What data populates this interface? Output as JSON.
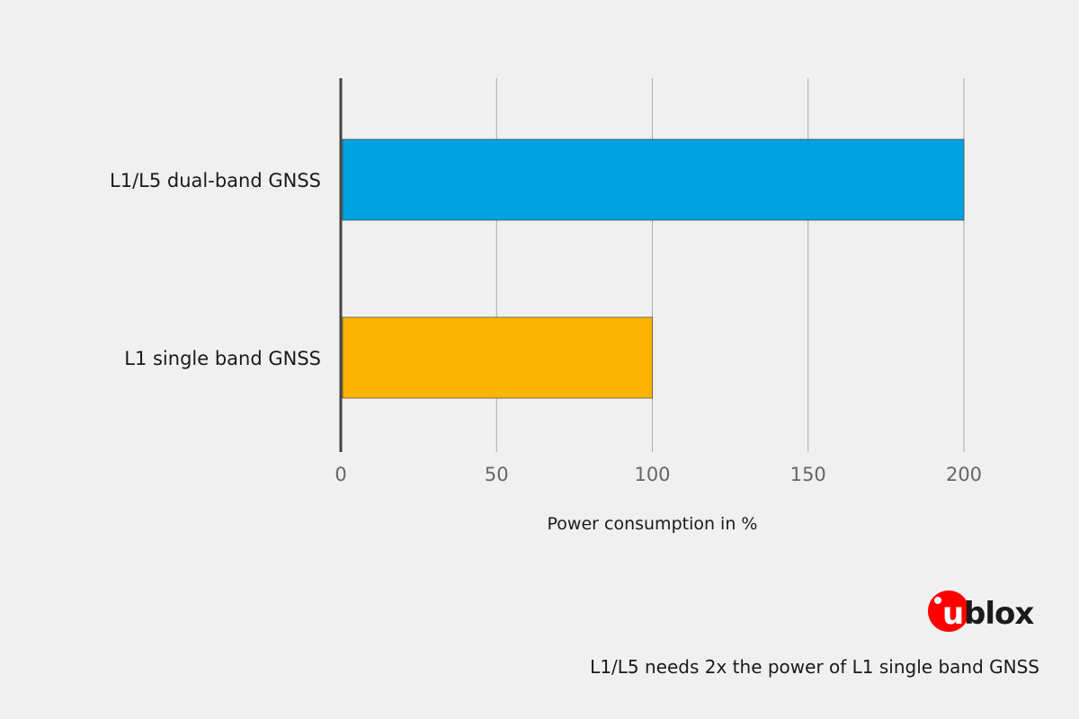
{
  "chart_data": {
    "type": "bar",
    "orientation": "horizontal",
    "categories": [
      "L1/L5 dual-band GNSS",
      "L1 single band GNSS"
    ],
    "values": [
      200,
      100
    ],
    "colors": [
      "#00a3e0",
      "#fab400"
    ],
    "xlabel": "Power consumption in %",
    "xlim": [
      0,
      200
    ],
    "xticks": [
      "0",
      "50",
      "100",
      "150",
      "200"
    ],
    "grid": true
  },
  "logo": {
    "text": "ublox",
    "color": "#ff0000"
  },
  "caption": "L1/L5 needs 2x the power of L1 single band GNSS"
}
